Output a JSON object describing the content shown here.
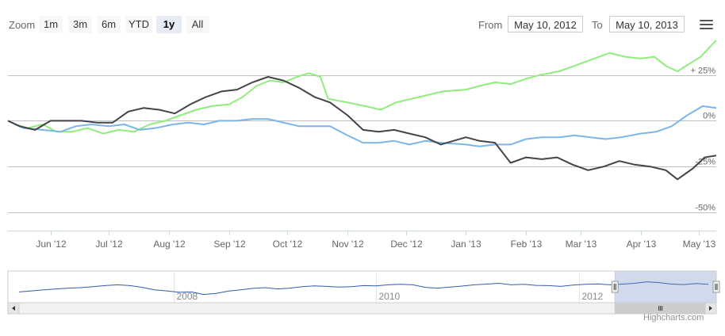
{
  "toolbar": {
    "zoom_label": "Zoom",
    "zoom_buttons": [
      "1m",
      "3m",
      "6m",
      "YTD",
      "1y",
      "All"
    ],
    "active_zoom": "1y",
    "from_label": "From",
    "from_value": "May 10, 2012",
    "to_label": "To",
    "to_value": "May 10, 2013"
  },
  "chart_data": {
    "type": "line",
    "ylim": [
      -60,
      40
    ],
    "y_tick_labels": [
      {
        "value": 25,
        "label": "+ 25%"
      },
      {
        "value": 0,
        "label": "0%"
      },
      {
        "value": -25,
        "label": "-25%"
      },
      {
        "value": -50,
        "label": "-50%"
      }
    ],
    "x_range": [
      "2012-05-10",
      "2013-05-10"
    ],
    "x_tick_labels": [
      {
        "date": "2012-06-01",
        "label": "Jun '12"
      },
      {
        "date": "2012-07-01",
        "label": "Jul '12"
      },
      {
        "date": "2012-08-01",
        "label": "Aug '12"
      },
      {
        "date": "2012-09-01",
        "label": "Sep '12"
      },
      {
        "date": "2012-10-01",
        "label": "Oct '12"
      },
      {
        "date": "2012-11-01",
        "label": "Nov '12"
      },
      {
        "date": "2012-12-01",
        "label": "Dec '12"
      },
      {
        "date": "2013-01-01",
        "label": "Jan '13"
      },
      {
        "date": "2013-02-01",
        "label": "Feb '13"
      },
      {
        "date": "2013-03-01",
        "label": "Mar '13"
      },
      {
        "date": "2013-04-01",
        "label": "Apr '13"
      },
      {
        "date": "2013-05-01",
        "label": "May '13"
      }
    ],
    "series": [
      {
        "color": "#90ed7d",
        "points": [
          [
            "2012-05-10",
            0
          ],
          [
            "2012-05-14",
            -2
          ],
          [
            "2012-05-20",
            -4
          ],
          [
            "2012-05-28",
            -2
          ],
          [
            "2012-06-04",
            -6
          ],
          [
            "2012-06-12",
            -6
          ],
          [
            "2012-06-20",
            -4
          ],
          [
            "2012-06-28",
            -7
          ],
          [
            "2012-07-06",
            -5
          ],
          [
            "2012-07-14",
            -6
          ],
          [
            "2012-07-22",
            -2
          ],
          [
            "2012-07-30",
            0
          ],
          [
            "2012-08-07",
            3
          ],
          [
            "2012-08-15",
            6
          ],
          [
            "2012-08-23",
            8
          ],
          [
            "2012-09-01",
            9
          ],
          [
            "2012-09-08",
            13
          ],
          [
            "2012-09-15",
            19
          ],
          [
            "2012-09-22",
            22
          ],
          [
            "2012-09-29",
            21
          ],
          [
            "2012-10-06",
            24
          ],
          [
            "2012-10-12",
            26
          ],
          [
            "2012-10-18",
            24
          ],
          [
            "2012-10-22",
            12
          ],
          [
            "2012-11-01",
            10
          ],
          [
            "2012-11-10",
            8
          ],
          [
            "2012-11-18",
            6
          ],
          [
            "2012-11-26",
            10
          ],
          [
            "2012-12-04",
            12
          ],
          [
            "2012-12-12",
            14
          ],
          [
            "2012-12-20",
            16
          ],
          [
            "2013-01-01",
            17
          ],
          [
            "2013-01-08",
            19
          ],
          [
            "2013-01-16",
            21
          ],
          [
            "2013-01-24",
            20
          ],
          [
            "2013-02-01",
            23
          ],
          [
            "2013-02-08",
            25
          ],
          [
            "2013-02-18",
            27
          ],
          [
            "2013-02-26",
            30
          ],
          [
            "2013-03-08",
            34
          ],
          [
            "2013-03-16",
            37
          ],
          [
            "2013-03-24",
            35
          ],
          [
            "2013-04-01",
            34
          ],
          [
            "2013-04-08",
            35
          ],
          [
            "2013-04-14",
            30
          ],
          [
            "2013-04-20",
            27
          ],
          [
            "2013-04-26",
            31
          ],
          [
            "2013-05-02",
            35
          ],
          [
            "2013-05-10",
            44
          ]
        ]
      },
      {
        "color": "#7cb5ec",
        "points": [
          [
            "2012-05-10",
            0
          ],
          [
            "2012-05-18",
            -4
          ],
          [
            "2012-05-28",
            -5
          ],
          [
            "2012-06-06",
            -6
          ],
          [
            "2012-06-14",
            -3
          ],
          [
            "2012-06-22",
            -2
          ],
          [
            "2012-07-01",
            -3
          ],
          [
            "2012-07-09",
            -2
          ],
          [
            "2012-07-17",
            -5
          ],
          [
            "2012-07-25",
            -4
          ],
          [
            "2012-08-03",
            -2
          ],
          [
            "2012-08-11",
            -1
          ],
          [
            "2012-08-19",
            -2
          ],
          [
            "2012-08-27",
            0
          ],
          [
            "2012-09-05",
            0
          ],
          [
            "2012-09-13",
            1
          ],
          [
            "2012-09-21",
            1
          ],
          [
            "2012-09-29",
            -1
          ],
          [
            "2012-10-07",
            -3
          ],
          [
            "2012-10-15",
            -3
          ],
          [
            "2012-10-23",
            -3
          ],
          [
            "2012-11-01",
            -8
          ],
          [
            "2012-11-09",
            -12
          ],
          [
            "2012-11-17",
            -12
          ],
          [
            "2012-11-25",
            -11
          ],
          [
            "2012-12-03",
            -13
          ],
          [
            "2012-12-11",
            -11
          ],
          [
            "2012-12-19",
            -12
          ],
          [
            "2013-01-01",
            -13
          ],
          [
            "2013-01-08",
            -14
          ],
          [
            "2013-01-16",
            -13
          ],
          [
            "2013-01-24",
            -13
          ],
          [
            "2013-02-01",
            -10
          ],
          [
            "2013-02-09",
            -9
          ],
          [
            "2013-02-18",
            -9
          ],
          [
            "2013-02-26",
            -8
          ],
          [
            "2013-03-06",
            -9
          ],
          [
            "2013-03-14",
            -10
          ],
          [
            "2013-03-22",
            -9
          ],
          [
            "2013-04-01",
            -7
          ],
          [
            "2013-04-09",
            -6
          ],
          [
            "2013-04-17",
            -3
          ],
          [
            "2013-04-25",
            3
          ],
          [
            "2013-05-03",
            8
          ],
          [
            "2013-05-10",
            7
          ]
        ]
      },
      {
        "color": "#434348",
        "points": [
          [
            "2012-05-10",
            0
          ],
          [
            "2012-05-16",
            -3
          ],
          [
            "2012-05-24",
            -5
          ],
          [
            "2012-06-01",
            0
          ],
          [
            "2012-06-09",
            0
          ],
          [
            "2012-06-17",
            0
          ],
          [
            "2012-06-25",
            -1
          ],
          [
            "2012-07-03",
            -1
          ],
          [
            "2012-07-11",
            5
          ],
          [
            "2012-07-19",
            7
          ],
          [
            "2012-07-27",
            6
          ],
          [
            "2012-08-04",
            4
          ],
          [
            "2012-08-12",
            9
          ],
          [
            "2012-08-20",
            13
          ],
          [
            "2012-08-28",
            16
          ],
          [
            "2012-09-05",
            17
          ],
          [
            "2012-09-13",
            21
          ],
          [
            "2012-09-21",
            24
          ],
          [
            "2012-09-29",
            22
          ],
          [
            "2012-10-07",
            18
          ],
          [
            "2012-10-15",
            13
          ],
          [
            "2012-10-23",
            10
          ],
          [
            "2012-11-01",
            3
          ],
          [
            "2012-11-09",
            -5
          ],
          [
            "2012-11-17",
            -6
          ],
          [
            "2012-11-25",
            -5
          ],
          [
            "2012-12-03",
            -7
          ],
          [
            "2012-12-11",
            -9
          ],
          [
            "2012-12-19",
            -13
          ],
          [
            "2013-01-01",
            -9
          ],
          [
            "2013-01-08",
            -11
          ],
          [
            "2013-01-16",
            -12
          ],
          [
            "2013-01-24",
            -23
          ],
          [
            "2013-02-01",
            -20
          ],
          [
            "2013-02-09",
            -21
          ],
          [
            "2013-02-17",
            -20
          ],
          [
            "2013-02-25",
            -24
          ],
          [
            "2013-03-05",
            -27
          ],
          [
            "2013-03-13",
            -25
          ],
          [
            "2013-03-21",
            -22
          ],
          [
            "2013-03-29",
            -24
          ],
          [
            "2013-04-06",
            -25
          ],
          [
            "2013-04-14",
            -27
          ],
          [
            "2013-04-20",
            -32
          ],
          [
            "2013-04-28",
            -26
          ],
          [
            "2013-05-04",
            -20
          ],
          [
            "2013-05-10",
            -19
          ]
        ]
      }
    ]
  },
  "navigator": {
    "year_labels": [
      {
        "date": "2008-01-01",
        "label": "2008"
      },
      {
        "date": "2010-01-01",
        "label": "2010"
      },
      {
        "date": "2012-01-01",
        "label": "2012"
      }
    ],
    "x_range": [
      "2006-05-15",
      "2013-05-10"
    ],
    "selected_range": [
      "2012-05-10",
      "2013-05-10"
    ],
    "ylim": [
      0,
      100
    ],
    "values": [
      30,
      34,
      38,
      42,
      45,
      47,
      51,
      55,
      58,
      55,
      48,
      38,
      34,
      29,
      30,
      20,
      24,
      33,
      38,
      44,
      47,
      42,
      45,
      51,
      54,
      52,
      49,
      51,
      55,
      54,
      58,
      60,
      58,
      48,
      45,
      49,
      53,
      58,
      61,
      64,
      58,
      60,
      56,
      55,
      52,
      57,
      60,
      62,
      58,
      61,
      64,
      70,
      67,
      61,
      59,
      63,
      60
    ]
  },
  "credits": "Highcharts.com"
}
